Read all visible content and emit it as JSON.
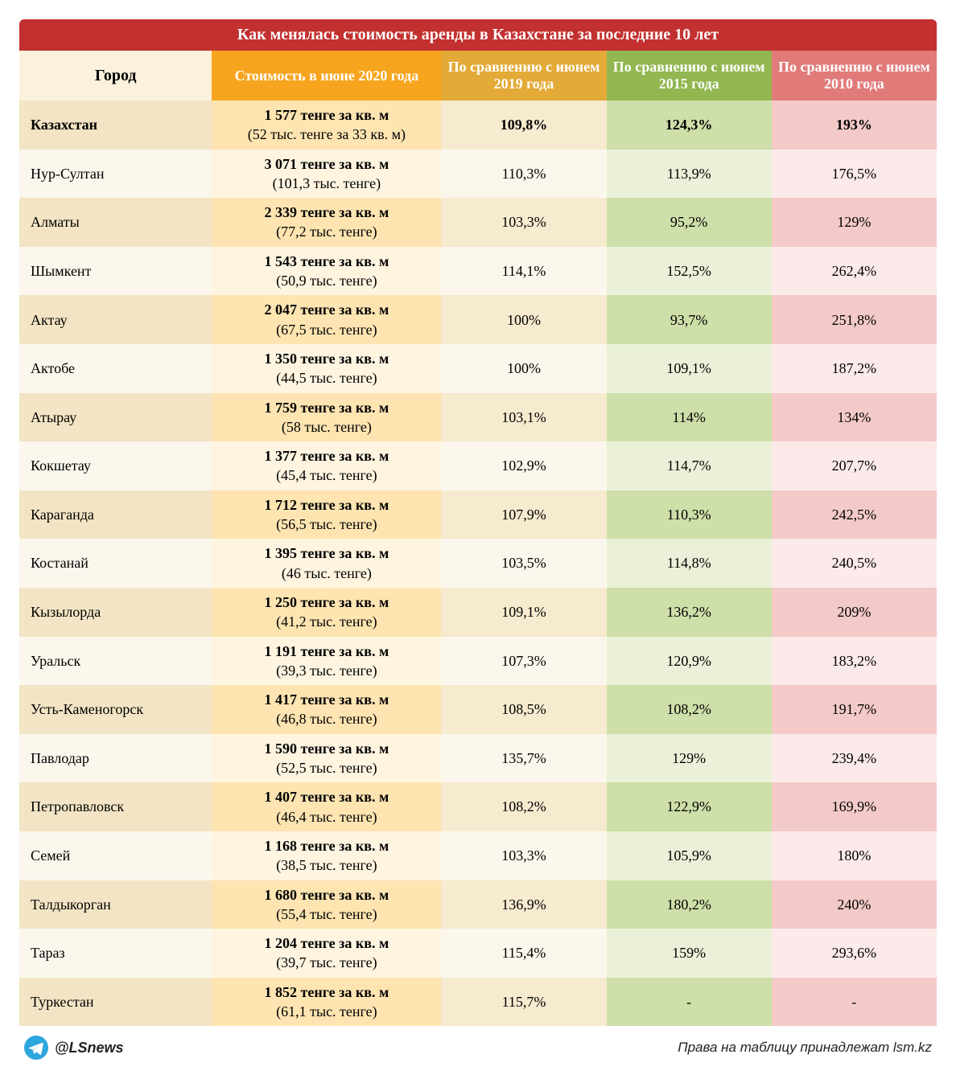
{
  "title": "Как менялась стоимость аренды в Казахстане за последние 10 лет",
  "columns": {
    "city": "Город",
    "cost": "Стоимость в июне 2020 года",
    "y2019": "По сравнению с июнем 2019 года",
    "y2015": "По сравнению с июнем 2015 года",
    "y2010": "По сравнению с июнем 2010 года"
  },
  "column_widths_pct": [
    21,
    25,
    18,
    18,
    18
  ],
  "header_colors": {
    "city": {
      "bg": "#fcf1dc",
      "fg": "#000000"
    },
    "cost": {
      "bg": "#f7a51e",
      "fg": "#ffffff"
    },
    "y2019": {
      "bg": "#e3aa37",
      "fg": "#ffffff"
    },
    "y2015": {
      "bg": "#92b750",
      "fg": "#ffffff"
    },
    "y2010": {
      "bg": "#e07b7a",
      "fg": "#ffffff"
    }
  },
  "title_bg": "#c2302f",
  "title_fg": "#ffffff",
  "zebra_colors": {
    "even": {
      "city": "#f2e4c4",
      "cost": "#fde4b1",
      "y2019": "#f6eacf",
      "y2015": "#cedfa9",
      "y2010": "#f3cac8"
    },
    "odd": {
      "city": "#fbf7ed",
      "cost": "#fef4e0",
      "y2019": "#fbf7ec",
      "y2015": "#eaf1d8",
      "y2010": "#fbeae9"
    }
  },
  "font": {
    "family": "Georgia/serif",
    "body_size_pt": 14,
    "header_size_pt": 14,
    "title_size_pt": 15
  },
  "rows": [
    {
      "city": "Казахстан",
      "bold": true,
      "cost_main": "1 577 тенге за кв. м",
      "cost_sub": "(52 тыс. тенге за 33 кв. м)",
      "y2019": "109,8%",
      "y2015": "124,3%",
      "y2010": "193%"
    },
    {
      "city": "Нур-Султан",
      "bold": false,
      "cost_main": "3 071 тенге за кв. м",
      "cost_sub": "(101,3 тыс. тенге)",
      "y2019": "110,3%",
      "y2015": "113,9%",
      "y2010": "176,5%"
    },
    {
      "city": "Алматы",
      "bold": false,
      "cost_main": "2 339 тенге за кв. м",
      "cost_sub": "(77,2 тыс. тенге)",
      "y2019": "103,3%",
      "y2015": "95,2%",
      "y2010": "129%"
    },
    {
      "city": "Шымкент",
      "bold": false,
      "cost_main": "1 543 тенге за кв. м",
      "cost_sub": "(50,9 тыс. тенге)",
      "y2019": "114,1%",
      "y2015": "152,5%",
      "y2010": "262,4%"
    },
    {
      "city": "Актау",
      "bold": false,
      "cost_main": "2 047 тенге за кв. м",
      "cost_sub": "(67,5 тыс. тенге)",
      "y2019": "100%",
      "y2015": "93,7%",
      "y2010": "251,8%"
    },
    {
      "city": "Актобе",
      "bold": false,
      "cost_main": "1 350 тенге за кв. м",
      "cost_sub": "(44,5 тыс. тенге)",
      "y2019": "100%",
      "y2015": "109,1%",
      "y2010": "187,2%"
    },
    {
      "city": "Атырау",
      "bold": false,
      "cost_main": "1 759 тенге за кв. м",
      "cost_sub": "(58 тыс. тенге)",
      "y2019": "103,1%",
      "y2015": "114%",
      "y2010": "134%"
    },
    {
      "city": "Кокшетау",
      "bold": false,
      "cost_main": "1 377 тенге за кв. м",
      "cost_sub": "(45,4 тыс. тенге)",
      "y2019": "102,9%",
      "y2015": "114,7%",
      "y2010": "207,7%"
    },
    {
      "city": "Караганда",
      "bold": false,
      "cost_main": "1 712 тенге за кв. м",
      "cost_sub": "(56,5 тыс. тенге)",
      "y2019": "107,9%",
      "y2015": "110,3%",
      "y2010": "242,5%"
    },
    {
      "city": "Костанай",
      "bold": false,
      "cost_main": "1 395 тенге за кв. м",
      "cost_sub": "(46 тыс. тенге)",
      "y2019": "103,5%",
      "y2015": "114,8%",
      "y2010": "240,5%"
    },
    {
      "city": "Кызылорда",
      "bold": false,
      "cost_main": "1 250 тенге за кв. м",
      "cost_sub": "(41,2 тыс. тенге)",
      "y2019": "109,1%",
      "y2015": "136,2%",
      "y2010": "209%"
    },
    {
      "city": "Уральск",
      "bold": false,
      "cost_main": "1 191 тенге за кв. м",
      "cost_sub": "(39,3 тыс. тенге)",
      "y2019": "107,3%",
      "y2015": "120,9%",
      "y2010": "183,2%"
    },
    {
      "city": "Усть-Каменогорск",
      "bold": false,
      "cost_main": "1 417 тенге за кв. м",
      "cost_sub": "(46,8 тыс. тенге)",
      "y2019": "108,5%",
      "y2015": "108,2%",
      "y2010": "191,7%"
    },
    {
      "city": "Павлодар",
      "bold": false,
      "cost_main": "1 590 тенге за кв. м",
      "cost_sub": "(52,5 тыс. тенге)",
      "y2019": "135,7%",
      "y2015": "129%",
      "y2010": "239,4%"
    },
    {
      "city": "Петропавловск",
      "bold": false,
      "cost_main": "1 407 тенге за кв. м",
      "cost_sub": "(46,4 тыс. тенге)",
      "y2019": "108,2%",
      "y2015": "122,9%",
      "y2010": "169,9%"
    },
    {
      "city": "Семей",
      "bold": false,
      "cost_main": "1 168 тенге за кв. м",
      "cost_sub": "(38,5 тыс. тенге)",
      "y2019": "103,3%",
      "y2015": "105,9%",
      "y2010": "180%"
    },
    {
      "city": "Талдыкорган",
      "bold": false,
      "cost_main": "1 680 тенге за кв. м",
      "cost_sub": "(55,4 тыс. тенге)",
      "y2019": "136,9%",
      "y2015": "180,2%",
      "y2010": "240%"
    },
    {
      "city": "Тараз",
      "bold": false,
      "cost_main": "1 204 тенге за кв. м",
      "cost_sub": "(39,7 тыс. тенге)",
      "y2019": "115,4%",
      "y2015": "159%",
      "y2010": "293,6%"
    },
    {
      "city": "Туркестан",
      "bold": false,
      "cost_main": "1 852 тенге за кв. м",
      "cost_sub": "(61,1 тыс. тенге)",
      "y2019": "115,7%",
      "y2015": "-",
      "y2010": "-"
    }
  ],
  "footer": {
    "handle": "@LSnews",
    "rights": "Права на таблицу принадлежат lsm.kz",
    "icon_color": "#2ea6de",
    "icon_name": "telegram-icon"
  }
}
